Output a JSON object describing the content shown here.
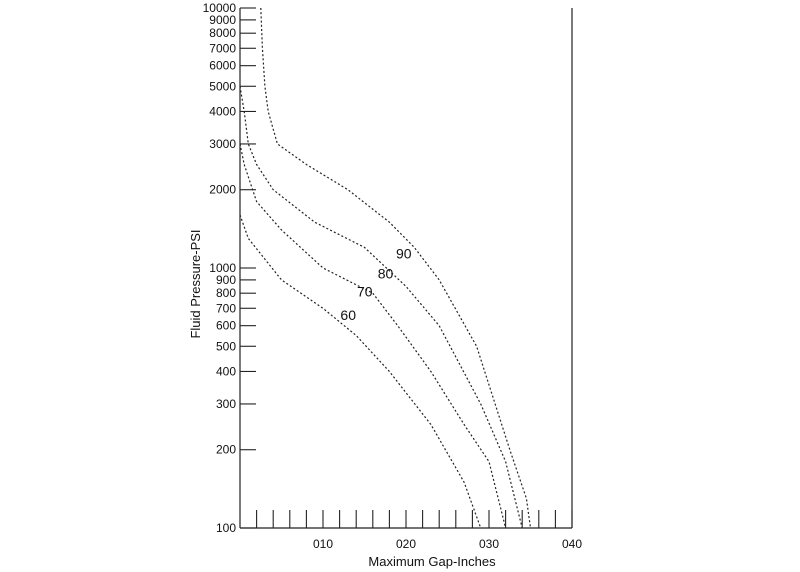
{
  "chart_data": {
    "type": "line",
    "xlabel": "Maximum Gap-Inches",
    "ylabel": "Fluid Pressure-PSI",
    "y_scale": "log",
    "xlim": [
      0,
      0.04
    ],
    "ylim": [
      100,
      10000
    ],
    "grid": false,
    "x_ticks": [
      {
        "value": 0.01,
        "label": "010"
      },
      {
        "value": 0.02,
        "label": "020"
      },
      {
        "value": 0.03,
        "label": "030"
      },
      {
        "value": 0.04,
        "label": "040"
      }
    ],
    "x_minor_step": 0.002,
    "y_ticks": [
      {
        "value": 100,
        "label": "100"
      },
      {
        "value": 200,
        "label": "200"
      },
      {
        "value": 300,
        "label": "300"
      },
      {
        "value": 400,
        "label": "400"
      },
      {
        "value": 500,
        "label": "500"
      },
      {
        "value": 600,
        "label": "600"
      },
      {
        "value": 700,
        "label": "700"
      },
      {
        "value": 800,
        "label": "800"
      },
      {
        "value": 900,
        "label": "900"
      },
      {
        "value": 1000,
        "label": "1000"
      },
      {
        "value": 2000,
        "label": "2000"
      },
      {
        "value": 3000,
        "label": "3000"
      },
      {
        "value": 4000,
        "label": "4000"
      },
      {
        "value": 5000,
        "label": "5000"
      },
      {
        "value": 6000,
        "label": "6000"
      },
      {
        "value": 7000,
        "label": "7000"
      },
      {
        "value": 8000,
        "label": "8000"
      },
      {
        "value": 9000,
        "label": "9000"
      },
      {
        "value": 10000,
        "label": "10000"
      }
    ],
    "series": [
      {
        "name": "90",
        "x": [
          0.0025,
          0.0027,
          0.003,
          0.0034,
          0.0045,
          0.008,
          0.013,
          0.018,
          0.021,
          0.024,
          0.0285,
          0.0325,
          0.0345,
          0.035
        ],
        "y": [
          10000,
          7000,
          5000,
          4000,
          3000,
          2500,
          2000,
          1500,
          1200,
          900,
          500,
          200,
          130,
          100
        ]
      },
      {
        "name": "80",
        "x": [
          0.0,
          0.0005,
          0.001,
          0.002,
          0.004,
          0.009,
          0.015,
          0.02,
          0.024,
          0.029,
          0.032,
          0.034
        ],
        "y": [
          5000,
          4000,
          3000,
          2500,
          2000,
          1500,
          1200,
          850,
          600,
          300,
          180,
          100
        ]
      },
      {
        "name": "70",
        "x": [
          0.0,
          0.0005,
          0.002,
          0.005,
          0.01,
          0.016,
          0.019,
          0.023,
          0.027,
          0.03,
          0.032
        ],
        "y": [
          3000,
          2500,
          1800,
          1400,
          1000,
          800,
          600,
          400,
          250,
          180,
          100
        ]
      },
      {
        "name": "60",
        "x": [
          0.0,
          0.001,
          0.005,
          0.01,
          0.014,
          0.018,
          0.023,
          0.027,
          0.029
        ],
        "y": [
          1600,
          1300,
          900,
          700,
          550,
          400,
          250,
          150,
          100
        ]
      }
    ]
  }
}
